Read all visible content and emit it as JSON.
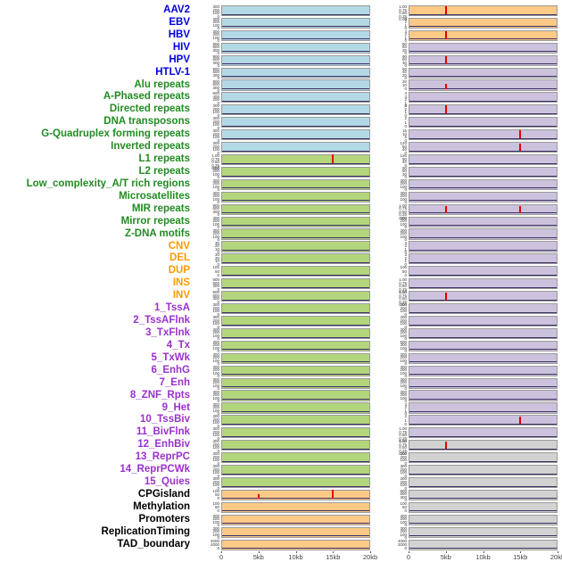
{
  "colors": {
    "label": {
      "virus": "#0000dd",
      "repeat": "#228b22",
      "sv": "#ff9900",
      "chromatin": "#9932cc",
      "other": "#000000"
    },
    "fill": {
      "blue": "#b4d9e6",
      "green": "#b3d67c",
      "orange": "#fdc986",
      "purple": "#cdc2dd",
      "gray": "#d2d2d2"
    },
    "spike": "#e80000",
    "baseline": "#3b2f63"
  },
  "chart_data": {
    "type": "area",
    "description": "Small-multiple feature density tracks; two panels per feature over a 0-20kb window; red vertical lines mark enrichment peaks",
    "x_ticks": [
      "0",
      "5kb",
      "10kb",
      "15kb",
      "20kb"
    ],
    "x_range_kb": [
      0,
      20
    ],
    "rows": [
      {
        "label": "AAV2",
        "group": "virus",
        "left": {
          "fill": "blue",
          "ticks": [
            "300",
            "200",
            "100",
            "0"
          ]
        },
        "right": {
          "fill": "orange",
          "ticks": [
            "1.00",
            "0.75",
            "0.50",
            "0.25",
            "0.00"
          ],
          "spikes": [
            {
              "x": 0.25,
              "h": 0.92
            }
          ]
        }
      },
      {
        "label": "EBV",
        "group": "virus",
        "left": {
          "fill": "blue",
          "ticks": [
            "300",
            "200",
            "100",
            "0"
          ]
        },
        "right": {
          "fill": "orange",
          "ticks": [
            "3",
            "2",
            "1",
            "0"
          ]
        }
      },
      {
        "label": "HBV",
        "group": "virus",
        "left": {
          "fill": "blue",
          "ticks": [
            "300",
            "200",
            "100",
            "0"
          ]
        },
        "right": {
          "fill": "orange",
          "ticks": [
            "3",
            "2",
            "1",
            "0"
          ],
          "spikes": [
            {
              "x": 0.25,
              "h": 0.9
            }
          ]
        }
      },
      {
        "label": "HIV",
        "group": "virus",
        "left": {
          "fill": "blue",
          "ticks": [
            "900",
            "600",
            "300",
            "0"
          ]
        },
        "right": {
          "fill": "purple",
          "ticks": [
            "90",
            "60",
            "30",
            "0"
          ]
        }
      },
      {
        "label": "HPV",
        "group": "virus",
        "left": {
          "fill": "blue",
          "ticks": [
            "900",
            "600",
            "300",
            "0"
          ]
        },
        "right": {
          "fill": "purple",
          "ticks": [
            "90",
            "60",
            "30",
            "0"
          ],
          "spikes": [
            {
              "x": 0.25,
              "h": 0.85
            }
          ]
        }
      },
      {
        "label": "HTLV-1",
        "group": "virus",
        "left": {
          "fill": "blue",
          "ticks": [
            "900",
            "600",
            "300",
            "0"
          ]
        },
        "right": {
          "fill": "purple",
          "ticks": [
            "60",
            "40",
            "20",
            "0"
          ]
        }
      },
      {
        "label": "Alu repeats",
        "group": "repeat",
        "left": {
          "fill": "blue",
          "ticks": [
            "900",
            "600",
            "300",
            "0"
          ]
        },
        "right": {
          "fill": "purple",
          "ticks": [
            "20",
            "10",
            "0"
          ],
          "spikes": [
            {
              "x": 0.25,
              "h": 0.55
            }
          ]
        }
      },
      {
        "label": "A-Phased repeats",
        "group": "repeat",
        "left": {
          "fill": "blue",
          "ticks": [
            "600",
            "400",
            "200",
            "0"
          ]
        },
        "right": {
          "fill": "purple",
          "ticks": [
            "4",
            "3",
            "2",
            "1",
            "0"
          ]
        }
      },
      {
        "label": "Directed repeats",
        "group": "repeat",
        "left": {
          "fill": "blue",
          "ticks": [
            "300",
            "200",
            "100",
            "0"
          ]
        },
        "right": {
          "fill": "purple",
          "ticks": [
            "3",
            "2",
            "1",
            "0"
          ],
          "spikes": [
            {
              "x": 0.25,
              "h": 0.88
            }
          ]
        }
      },
      {
        "label": "DNA transposons",
        "group": "repeat",
        "left": {
          "fill": "blue",
          "ticks": [
            "300",
            "200",
            "100",
            "0"
          ]
        },
        "right": {
          "fill": "purple",
          "ticks": [
            "2",
            "1",
            "0"
          ]
        }
      },
      {
        "label": "G-Quadruplex forming repeats",
        "group": "repeat",
        "left": {
          "fill": "blue",
          "ticks": [
            "300",
            "200",
            "100",
            "0"
          ]
        },
        "right": {
          "fill": "purple",
          "ticks": [
            "15",
            "10",
            "5",
            "0"
          ],
          "spikes": [
            {
              "x": 0.75,
              "h": 0.9
            }
          ]
        }
      },
      {
        "label": "Inverted repeats",
        "group": "repeat",
        "left": {
          "fill": "blue",
          "ticks": [
            "300",
            "200",
            "100",
            "0"
          ]
        },
        "right": {
          "fill": "purple",
          "ticks": [
            "120",
            "80",
            "40",
            "0"
          ],
          "spikes": [
            {
              "x": 0.75,
              "h": 0.85
            }
          ]
        }
      },
      {
        "label": "L1 repeats",
        "group": "repeat",
        "left": {
          "fill": "green",
          "ticks": [
            "1.00",
            "0.75",
            "0.50",
            "0.25",
            "0.00"
          ],
          "spikes": [
            {
              "x": 0.75,
              "h": 0.95
            }
          ]
        },
        "right": {
          "fill": "purple",
          "ticks": [
            "120",
            "80",
            "40",
            "0"
          ]
        }
      },
      {
        "label": "L2 repeats",
        "group": "repeat",
        "left": {
          "fill": "green",
          "ticks": [
            "300",
            "200",
            "100",
            "0"
          ]
        },
        "right": {
          "fill": "purple",
          "ticks": [
            "90",
            "60",
            "30",
            "0"
          ]
        }
      },
      {
        "label": "Low_complexity_A/T rich regions",
        "group": "repeat",
        "left": {
          "fill": "green",
          "ticks": [
            "300",
            "200",
            "100",
            "0"
          ]
        },
        "right": {
          "fill": "purple",
          "ticks": [
            "300",
            "200",
            "100",
            "0"
          ]
        }
      },
      {
        "label": "Microsatellites",
        "group": "repeat",
        "left": {
          "fill": "green",
          "ticks": [
            "300",
            "200",
            "100",
            "0"
          ]
        },
        "right": {
          "fill": "purple",
          "ticks": [
            "300",
            "200",
            "100",
            "0"
          ]
        }
      },
      {
        "label": "MIR repeats",
        "group": "repeat",
        "left": {
          "fill": "green",
          "ticks": [
            "900",
            "600",
            "300",
            "0"
          ]
        },
        "right": {
          "fill": "purple",
          "ticks": [
            "1.00",
            "0.75",
            "0.50",
            "0.25",
            "0.00"
          ],
          "spikes": [
            {
              "x": 0.25,
              "h": 0.8
            },
            {
              "x": 0.75,
              "h": 0.72
            }
          ]
        }
      },
      {
        "label": "Mirror repeats",
        "group": "repeat",
        "left": {
          "fill": "green",
          "ticks": [
            "300",
            "200",
            "100",
            "0"
          ]
        },
        "right": {
          "fill": "purple",
          "ticks": [
            "300",
            "200",
            "100",
            "0"
          ]
        }
      },
      {
        "label": "Z-DNA motifs",
        "group": "repeat",
        "left": {
          "fill": "green",
          "ticks": [
            "300",
            "200",
            "100",
            "0"
          ]
        },
        "right": {
          "fill": "purple",
          "ticks": [
            "300",
            "200",
            "100",
            "0"
          ]
        }
      },
      {
        "label": "CNV",
        "group": "sv",
        "left": {
          "fill": "green",
          "ticks": [
            "30",
            "20",
            "10",
            "0"
          ]
        },
        "right": {
          "fill": "purple",
          "ticks": [
            "3",
            "2",
            "1",
            "0"
          ]
        }
      },
      {
        "label": "DEL",
        "group": "sv",
        "left": {
          "fill": "green",
          "ticks": [
            "30",
            "20",
            "10",
            "0"
          ]
        },
        "right": {
          "fill": "purple",
          "ticks": [
            "3",
            "2",
            "1",
            "0"
          ]
        }
      },
      {
        "label": "DUP",
        "group": "sv",
        "left": {
          "fill": "green",
          "ticks": [
            "100",
            "50",
            "0"
          ]
        },
        "right": {
          "fill": "purple",
          "ticks": [
            "100",
            "50",
            "0"
          ]
        }
      },
      {
        "label": "INS",
        "group": "sv",
        "left": {
          "fill": "green",
          "ticks": [
            "900",
            "600",
            "300",
            "0"
          ]
        },
        "right": {
          "fill": "purple",
          "ticks": [
            "1.00",
            "0.75",
            "0.50",
            "0.25",
            "0.00"
          ]
        }
      },
      {
        "label": "INV",
        "group": "sv",
        "left": {
          "fill": "green",
          "ticks": [
            "900",
            "600",
            "300",
            "0"
          ]
        },
        "right": {
          "fill": "purple",
          "ticks": [
            "1.00",
            "0.75",
            "0.50",
            "0.25",
            "0.00"
          ],
          "spikes": [
            {
              "x": 0.25,
              "h": 0.8
            }
          ]
        }
      },
      {
        "label": "1_TssA",
        "group": "chromatin",
        "left": {
          "fill": "green",
          "ticks": [
            "300",
            "200",
            "100",
            "0"
          ]
        },
        "right": {
          "fill": "purple",
          "ticks": [
            "300",
            "200",
            "100",
            "0"
          ]
        }
      },
      {
        "label": "2_TssAFlnk",
        "group": "chromatin",
        "left": {
          "fill": "green",
          "ticks": [
            "300",
            "200",
            "100",
            "0"
          ]
        },
        "right": {
          "fill": "purple",
          "ticks": [
            "300",
            "200",
            "100",
            "0"
          ]
        }
      },
      {
        "label": "3_TxFlnk",
        "group": "chromatin",
        "left": {
          "fill": "green",
          "ticks": [
            "300",
            "200",
            "100",
            "0"
          ]
        },
        "right": {
          "fill": "purple",
          "ticks": [
            "300",
            "200",
            "100",
            "0"
          ]
        }
      },
      {
        "label": "4_Tx",
        "group": "chromatin",
        "left": {
          "fill": "green",
          "ticks": [
            "300",
            "200",
            "100",
            "0"
          ]
        },
        "right": {
          "fill": "purple",
          "ticks": [
            "500",
            "300",
            "100",
            "0"
          ]
        }
      },
      {
        "label": "5_TxWk",
        "group": "chromatin",
        "left": {
          "fill": "green",
          "ticks": [
            "300",
            "200",
            "100",
            "0"
          ]
        },
        "right": {
          "fill": "purple",
          "ticks": [
            "300",
            "200",
            "100",
            "0"
          ]
        }
      },
      {
        "label": "6_EnhG",
        "group": "chromatin",
        "left": {
          "fill": "green",
          "ticks": [
            "300",
            "200",
            "100",
            "0"
          ]
        },
        "right": {
          "fill": "purple",
          "ticks": [
            "300",
            "200",
            "100",
            "0"
          ]
        }
      },
      {
        "label": "7_Enh",
        "group": "chromatin",
        "left": {
          "fill": "green",
          "ticks": [
            "300",
            "200",
            "100",
            "0"
          ]
        },
        "right": {
          "fill": "purple",
          "ticks": [
            "300",
            "200",
            "100",
            "0"
          ]
        }
      },
      {
        "label": "8_ZNF_Rpts",
        "group": "chromatin",
        "left": {
          "fill": "green",
          "ticks": [
            "300",
            "200",
            "100",
            "0"
          ]
        },
        "right": {
          "fill": "purple",
          "ticks": [
            "300",
            "200",
            "100",
            "0"
          ]
        }
      },
      {
        "label": "9_Het",
        "group": "chromatin",
        "left": {
          "fill": "green",
          "ticks": [
            "300",
            "200",
            "100",
            "0"
          ]
        },
        "right": {
          "fill": "purple",
          "ticks": [
            "3",
            "2",
            "1",
            "0"
          ]
        }
      },
      {
        "label": "10_TssBiv",
        "group": "chromatin",
        "left": {
          "fill": "green",
          "ticks": [
            "300",
            "200",
            "100",
            "0"
          ]
        },
        "right": {
          "fill": "purple",
          "ticks": [
            "2",
            "1",
            "0"
          ],
          "spikes": [
            {
              "x": 0.75,
              "h": 0.85
            }
          ]
        }
      },
      {
        "label": "11_BivFlnk",
        "group": "chromatin",
        "left": {
          "fill": "green",
          "ticks": [
            "300",
            "200",
            "100",
            "0"
          ]
        },
        "right": {
          "fill": "purple",
          "ticks": [
            "1.00",
            "0.75",
            "0.50",
            "0.25",
            "0.00"
          ]
        }
      },
      {
        "label": "12_EnhBiv",
        "group": "chromatin",
        "left": {
          "fill": "green",
          "ticks": [
            "300",
            "200",
            "100",
            "0"
          ]
        },
        "right": {
          "fill": "gray",
          "ticks": [
            "1.00",
            "0.75",
            "0.50",
            "0.25",
            "0.00"
          ],
          "spikes": [
            {
              "x": 0.25,
              "h": 0.8
            }
          ]
        }
      },
      {
        "label": "13_ReprPC",
        "group": "chromatin",
        "left": {
          "fill": "green",
          "ticks": [
            "300",
            "200",
            "100",
            "0"
          ]
        },
        "right": {
          "fill": "gray",
          "ticks": [
            "300",
            "200",
            "100",
            "0"
          ]
        }
      },
      {
        "label": "14_ReprPCWk",
        "group": "chromatin",
        "left": {
          "fill": "green",
          "ticks": [
            "300",
            "200",
            "100",
            "0"
          ]
        },
        "right": {
          "fill": "gray",
          "ticks": [
            "300",
            "200",
            "100",
            "0"
          ]
        }
      },
      {
        "label": "15_Quies",
        "group": "chromatin",
        "left": {
          "fill": "green",
          "ticks": [
            "300",
            "200",
            "100",
            "0"
          ]
        },
        "right": {
          "fill": "gray",
          "ticks": [
            "300",
            "200",
            "100",
            "0"
          ]
        }
      },
      {
        "label": "CPGisland",
        "group": "other",
        "left": {
          "fill": "orange",
          "ticks": [
            "100",
            "50",
            "0"
          ],
          "spikes": [
            {
              "x": 0.25,
              "h": 0.5
            },
            {
              "x": 0.75,
              "h": 0.95
            }
          ]
        },
        "right": {
          "fill": "gray",
          "ticks": [
            "900",
            "600",
            "300",
            "0"
          ]
        }
      },
      {
        "label": "Methylation",
        "group": "other",
        "left": {
          "fill": "orange",
          "ticks": [
            "100",
            "50",
            "0"
          ]
        },
        "right": {
          "fill": "gray",
          "ticks": [
            "100",
            "50",
            "0"
          ]
        }
      },
      {
        "label": "Promoters",
        "group": "other",
        "left": {
          "fill": "orange",
          "ticks": [
            "300",
            "200",
            "100",
            "0"
          ]
        },
        "right": {
          "fill": "gray",
          "ticks": [
            "300",
            "200",
            "100",
            "0"
          ]
        }
      },
      {
        "label": "ReplicationTiming",
        "group": "other",
        "left": {
          "fill": "orange",
          "ticks": [
            "300",
            "200",
            "100",
            "0"
          ]
        },
        "right": {
          "fill": "gray",
          "ticks": [
            "300",
            "200",
            "100",
            "0"
          ]
        }
      },
      {
        "label": "TAD_boundary",
        "group": "other",
        "left": {
          "fill": "orange",
          "ticks": [
            "4000",
            "2000",
            "0"
          ]
        },
        "right": {
          "fill": "gray",
          "ticks": [
            "4000",
            "2000",
            "0"
          ]
        }
      }
    ]
  }
}
